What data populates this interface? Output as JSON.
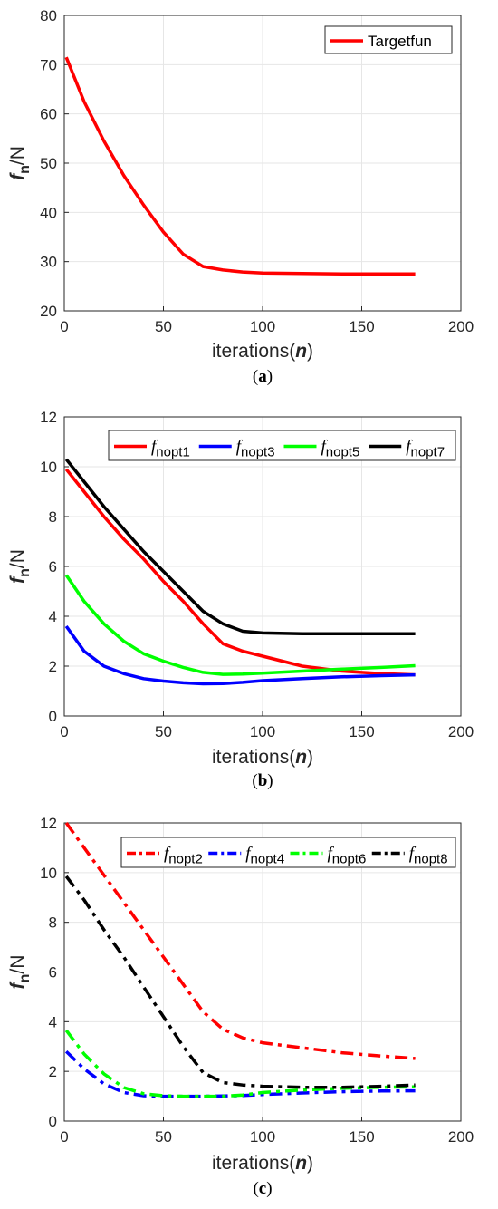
{
  "chart_data": [
    {
      "type": "line",
      "panel": "a",
      "caption_open": "(",
      "caption_letter": "a",
      "caption_close": ")",
      "xlabel_text": "iterations(",
      "xlabel_var": "n",
      "xlabel_close": ")",
      "ylabel_var": "f",
      "ylabel_sub": "n",
      "ylabel_unit": "/N",
      "xlim": [
        0,
        200
      ],
      "ylim": [
        20,
        80
      ],
      "xticks": [
        0,
        50,
        100,
        150,
        200
      ],
      "yticks": [
        20,
        30,
        40,
        50,
        60,
        70,
        80
      ],
      "grid": true,
      "legend_position": "top-right",
      "series": [
        {
          "name": "Targetfun",
          "color": "#ff0000",
          "style": "solid",
          "x": [
            1,
            10,
            20,
            30,
            40,
            50,
            60,
            70,
            80,
            90,
            100,
            120,
            140,
            160,
            177
          ],
          "y": [
            71.5,
            62.5,
            54.5,
            47.5,
            41.5,
            36,
            31.5,
            29,
            28.3,
            27.9,
            27.7,
            27.6,
            27.5,
            27.5,
            27.5
          ]
        }
      ]
    },
    {
      "type": "line",
      "panel": "b",
      "caption_open": "(",
      "caption_letter": "b",
      "caption_close": ")",
      "xlabel_text": "iterations(",
      "xlabel_var": "n",
      "xlabel_close": ")",
      "ylabel_var": "f",
      "ylabel_sub": "n",
      "ylabel_unit": "/N",
      "xlim": [
        0,
        200
      ],
      "ylim": [
        0,
        12
      ],
      "xticks": [
        0,
        50,
        100,
        150,
        200
      ],
      "yticks": [
        0,
        2,
        4,
        6,
        8,
        10,
        12
      ],
      "grid": true,
      "legend_position": "top",
      "series": [
        {
          "name_var": "f",
          "name_sub": "nopt1",
          "color": "#ff0000",
          "style": "solid",
          "x": [
            1,
            10,
            20,
            30,
            40,
            50,
            60,
            70,
            80,
            90,
            100,
            120,
            140,
            160,
            177
          ],
          "y": [
            9.9,
            9.0,
            8.0,
            7.1,
            6.3,
            5.4,
            4.6,
            3.7,
            2.9,
            2.6,
            2.4,
            2.0,
            1.8,
            1.7,
            1.65
          ]
        },
        {
          "name_var": "f",
          "name_sub": "nopt3",
          "color": "#0000ff",
          "style": "solid",
          "x": [
            1,
            10,
            20,
            30,
            40,
            50,
            60,
            70,
            80,
            90,
            100,
            120,
            140,
            160,
            177
          ],
          "y": [
            3.6,
            2.6,
            2.0,
            1.7,
            1.5,
            1.4,
            1.33,
            1.29,
            1.3,
            1.35,
            1.42,
            1.5,
            1.57,
            1.62,
            1.65
          ]
        },
        {
          "name_var": "f",
          "name_sub": "nopt5",
          "color": "#00ff00",
          "style": "solid",
          "x": [
            1,
            10,
            20,
            30,
            40,
            50,
            60,
            70,
            80,
            90,
            100,
            120,
            140,
            160,
            177
          ],
          "y": [
            5.65,
            4.6,
            3.7,
            3.0,
            2.5,
            2.2,
            1.95,
            1.75,
            1.67,
            1.68,
            1.72,
            1.8,
            1.88,
            1.95,
            2.02
          ]
        },
        {
          "name_var": "f",
          "name_sub": "nopt7",
          "color": "#000000",
          "style": "solid",
          "x": [
            1,
            10,
            20,
            30,
            40,
            50,
            60,
            70,
            80,
            90,
            100,
            120,
            140,
            160,
            177
          ],
          "y": [
            10.3,
            9.4,
            8.4,
            7.5,
            6.6,
            5.8,
            5.0,
            4.2,
            3.7,
            3.4,
            3.33,
            3.3,
            3.3,
            3.3,
            3.3
          ]
        }
      ]
    },
    {
      "type": "line",
      "panel": "c",
      "caption_open": "(",
      "caption_letter": "c",
      "caption_close": ")",
      "xlabel_text": "iterations(",
      "xlabel_var": "n",
      "xlabel_close": ")",
      "ylabel_var": "f",
      "ylabel_sub": "n",
      "ylabel_unit": "/N",
      "xlim": [
        0,
        200
      ],
      "ylim": [
        0,
        12
      ],
      "xticks": [
        0,
        50,
        100,
        150,
        200
      ],
      "yticks": [
        0,
        2,
        4,
        6,
        8,
        10,
        12
      ],
      "grid": true,
      "legend_position": "top",
      "series": [
        {
          "name_var": "f",
          "name_sub": "nopt2",
          "color": "#ff0000",
          "style": "dashdot",
          "x": [
            1,
            10,
            20,
            30,
            40,
            50,
            60,
            70,
            80,
            90,
            100,
            120,
            140,
            160,
            177
          ],
          "y": [
            12.0,
            11.0,
            9.9,
            8.8,
            7.7,
            6.6,
            5.5,
            4.4,
            3.7,
            3.35,
            3.15,
            2.95,
            2.75,
            2.62,
            2.52
          ]
        },
        {
          "name_var": "f",
          "name_sub": "nopt4",
          "color": "#0000ff",
          "style": "dashdot",
          "x": [
            1,
            10,
            20,
            30,
            40,
            50,
            60,
            70,
            80,
            90,
            100,
            120,
            140,
            160,
            177
          ],
          "y": [
            2.8,
            2.1,
            1.5,
            1.15,
            1.02,
            1.0,
            1.0,
            1.0,
            1.01,
            1.03,
            1.07,
            1.13,
            1.18,
            1.21,
            1.22
          ]
        },
        {
          "name_var": "f",
          "name_sub": "nopt6",
          "color": "#00ff00",
          "style": "dashdot",
          "x": [
            1,
            10,
            20,
            30,
            40,
            50,
            60,
            70,
            80,
            90,
            100,
            120,
            140,
            160,
            177
          ],
          "y": [
            3.65,
            2.7,
            1.9,
            1.35,
            1.1,
            1.02,
            1.0,
            1.0,
            1.0,
            1.05,
            1.15,
            1.25,
            1.32,
            1.36,
            1.38
          ]
        },
        {
          "name_var": "f",
          "name_sub": "nopt8",
          "color": "#000000",
          "style": "dashdot",
          "x": [
            1,
            10,
            20,
            30,
            40,
            50,
            60,
            70,
            80,
            90,
            100,
            120,
            140,
            160,
            177
          ],
          "y": [
            9.85,
            8.9,
            7.7,
            6.6,
            5.4,
            4.2,
            3.0,
            1.95,
            1.55,
            1.45,
            1.4,
            1.36,
            1.36,
            1.4,
            1.45
          ]
        }
      ]
    }
  ]
}
